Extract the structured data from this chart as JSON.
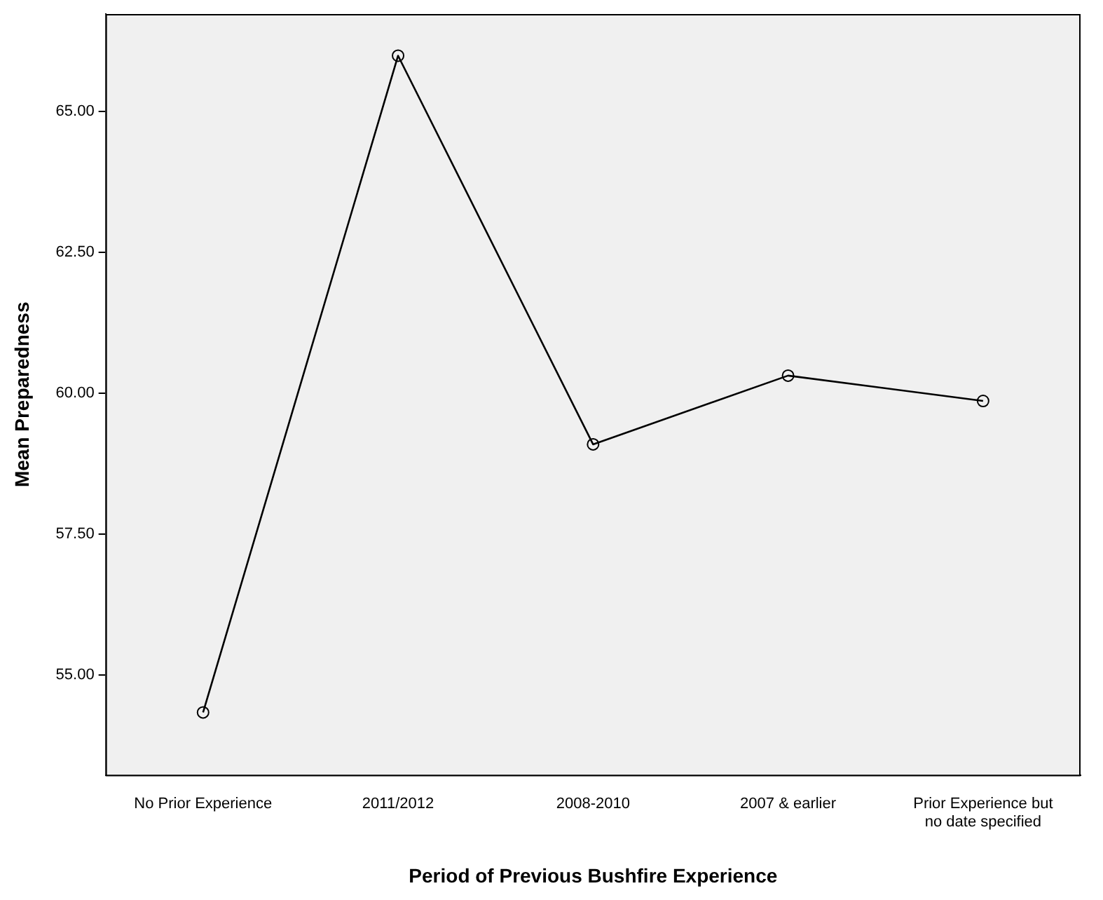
{
  "chart_data": {
    "type": "line",
    "xlabel": "Period of Previous Bushfire Experience",
    "ylabel": "Mean Preparedness",
    "categories": [
      "No Prior Experience",
      "2011/2012",
      "2008-2010",
      "2007 & earlier",
      "Prior Experience but no date specified"
    ],
    "series": [
      {
        "color": "#000000",
        "values": [
          54.33,
          65.99,
          59.09,
          60.31,
          59.86
        ]
      }
    ],
    "ylim": [
      53.22,
      66.73
    ],
    "yticks": [
      {
        "value": 55,
        "label": "55.00"
      },
      {
        "value": 57.5,
        "label": "57.50"
      },
      {
        "value": 60,
        "label": "60.00"
      },
      {
        "value": 62.5,
        "label": "62.50"
      },
      {
        "value": 65,
        "label": "65.00"
      }
    ],
    "marker": "circle",
    "line_style": "solid",
    "legend": false
  }
}
